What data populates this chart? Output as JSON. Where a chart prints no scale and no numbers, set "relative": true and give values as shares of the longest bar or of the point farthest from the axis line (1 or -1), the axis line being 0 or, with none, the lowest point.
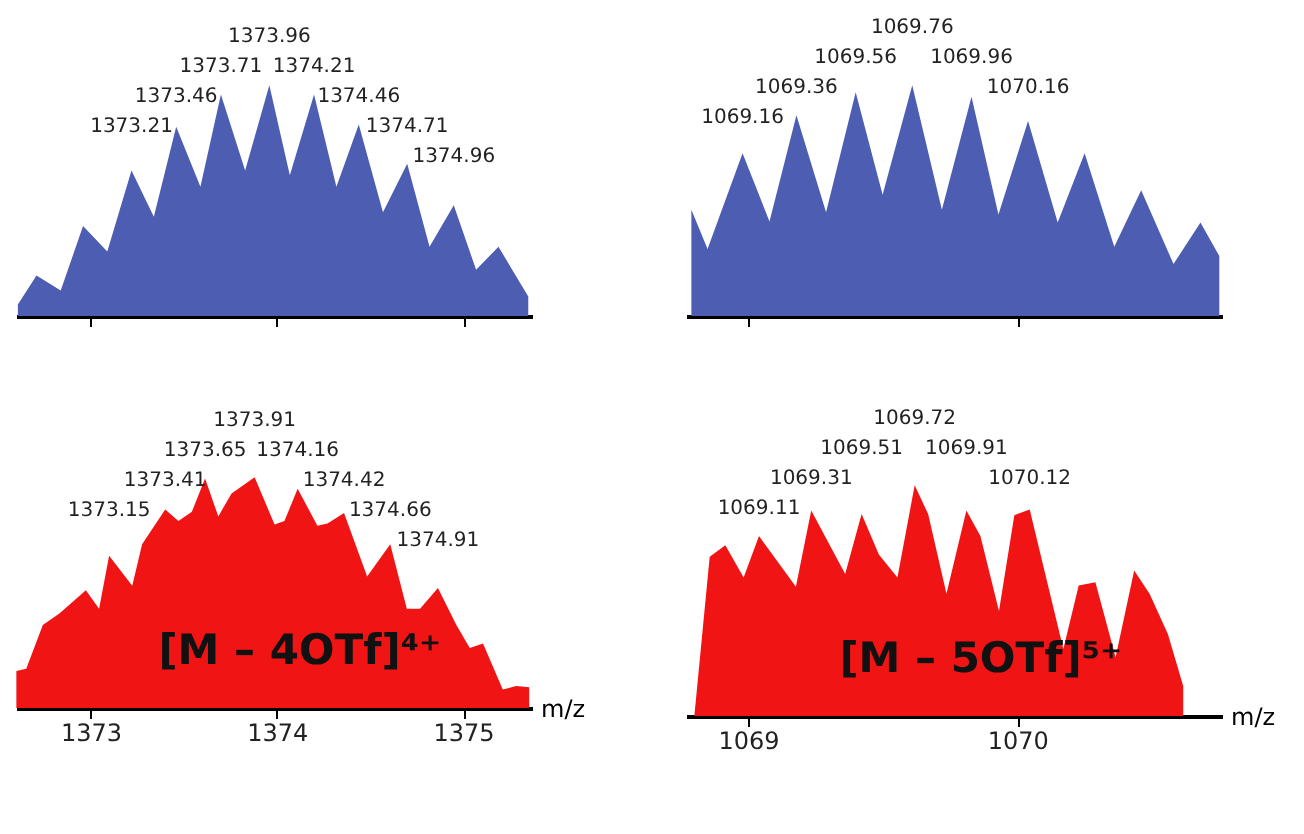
{
  "chart_data": [
    {
      "type": "area",
      "relative": true,
      "color": "#4c5db2",
      "xlim": [
        1372.6,
        1375.37
      ],
      "xticks": [
        1373,
        1374,
        1375
      ],
      "tick_labels": false,
      "x": [
        1372.61,
        1372.71,
        1372.84,
        1372.96,
        1373.09,
        1373.22,
        1373.34,
        1373.46,
        1373.59,
        1373.7,
        1373.83,
        1373.96,
        1374.07,
        1374.2,
        1374.32,
        1374.44,
        1374.57,
        1374.7,
        1374.82,
        1374.95,
        1375.07,
        1375.19,
        1375.35
      ],
      "values": [
        0.05,
        0.175,
        0.11,
        0.39,
        0.28,
        0.63,
        0.43,
        0.82,
        0.56,
        0.96,
        0.63,
        1.0,
        0.61,
        0.96,
        0.56,
        0.83,
        0.45,
        0.66,
        0.3,
        0.48,
        0.2,
        0.3,
        0.085
      ],
      "annotations": [
        {
          "text": "1373.21",
          "x": 1373.22,
          "y": 0.63
        },
        {
          "text": "1373.46",
          "x": 1373.46,
          "y": 0.82
        },
        {
          "text": "1373.71",
          "x": 1373.7,
          "y": 0.96
        },
        {
          "text": "1373.96",
          "x": 1373.96,
          "y": 1.0
        },
        {
          "text": "1374.21",
          "x": 1374.2,
          "y": 0.96
        },
        {
          "text": "1374.46",
          "x": 1374.44,
          "y": 0.83
        },
        {
          "text": "1374.71",
          "x": 1374.7,
          "y": 0.66
        },
        {
          "text": "1374.96",
          "x": 1374.95,
          "y": 0.48
        }
      ]
    },
    {
      "type": "area",
      "relative": true,
      "color": "#4c5db2",
      "xlim": [
        1068.77,
        1070.76
      ],
      "xticks": [
        1069,
        1070
      ],
      "tick_labels": false,
      "x": [
        1068.79,
        1068.85,
        1068.98,
        1069.08,
        1069.18,
        1069.29,
        1069.4,
        1069.5,
        1069.61,
        1069.72,
        1069.83,
        1069.93,
        1070.04,
        1070.15,
        1070.25,
        1070.36,
        1070.46,
        1070.58,
        1070.68,
        1070.75
      ],
      "values": [
        0.46,
        0.29,
        0.705,
        0.41,
        0.87,
        0.45,
        0.97,
        0.525,
        1.0,
        0.46,
        0.95,
        0.44,
        0.845,
        0.405,
        0.705,
        0.3,
        0.545,
        0.225,
        0.405,
        0.26
      ],
      "annotations": [
        {
          "text": "1069.16",
          "x": 1068.98,
          "y": 0.705
        },
        {
          "text": "1069.36",
          "x": 1069.18,
          "y": 0.87
        },
        {
          "text": "1069.56",
          "x": 1069.4,
          "y": 0.97
        },
        {
          "text": "1069.76",
          "x": 1069.61,
          "y": 1.0
        },
        {
          "text": "1069.96",
          "x": 1069.83,
          "y": 0.95
        },
        {
          "text": "1070.16",
          "x": 1070.04,
          "y": 0.845
        }
      ]
    },
    {
      "type": "area",
      "relative": true,
      "color": "#f01414",
      "xlim": [
        1372.6,
        1375.37
      ],
      "xticks": [
        1373,
        1374,
        1375
      ],
      "tick_labels": "x",
      "xlabel": "m/z",
      "x": [
        1372.602,
        1372.655,
        1372.744,
        1372.833,
        1372.975,
        1373.046,
        1373.1,
        1373.224,
        1373.277,
        1373.401,
        1373.472,
        1373.544,
        1373.615,
        1373.686,
        1373.757,
        1373.881,
        1373.988,
        1374.041,
        1374.112,
        1374.218,
        1374.272,
        1374.361,
        1374.485,
        1374.609,
        1374.698,
        1374.769,
        1374.865,
        1374.964,
        1375.036,
        1375.107,
        1375.213,
        1375.284,
        1375.355
      ],
      "values": [
        0.16,
        0.17,
        0.36,
        0.41,
        0.51,
        0.43,
        0.66,
        0.53,
        0.71,
        0.86,
        0.81,
        0.85,
        0.995,
        0.83,
        0.93,
        1.0,
        0.795,
        0.81,
        0.95,
        0.79,
        0.8,
        0.845,
        0.57,
        0.71,
        0.43,
        0.43,
        0.52,
        0.36,
        0.26,
        0.28,
        0.08,
        0.095,
        0.09
      ],
      "annotations": [
        {
          "text": "1373.15",
          "x": 1373.1,
          "y": 0.66
        },
        {
          "text": "1373.41",
          "x": 1373.401,
          "y": 0.86
        },
        {
          "text": "1373.65",
          "x": 1373.615,
          "y": 0.995
        },
        {
          "text": "1373.91",
          "x": 1373.881,
          "y": 1.0
        },
        {
          "text": "1374.16",
          "x": 1374.112,
          "y": 0.95
        },
        {
          "text": "1374.42",
          "x": 1374.361,
          "y": 0.845
        },
        {
          "text": "1374.66",
          "x": 1374.609,
          "y": 0.71
        },
        {
          "text": "1374.91",
          "x": 1374.865,
          "y": 0.52
        },
        "[M – 4OTf]⁴⁺"
      ]
    },
    {
      "type": "area",
      "relative": true,
      "color": "#f01414",
      "xlim": [
        1068.77,
        1070.76
      ],
      "xticks": [
        1069,
        1070
      ],
      "tick_labels": "x",
      "xlabel": "m/z",
      "x": [
        1068.801,
        1068.858,
        1068.916,
        1068.984,
        1069.041,
        1069.178,
        1069.235,
        1069.361,
        1069.422,
        1069.486,
        1069.555,
        1069.619,
        1069.669,
        1069.737,
        1069.811,
        1069.863,
        1069.932,
        1069.989,
        1070.046,
        1070.171,
        1070.228,
        1070.29,
        1070.365,
        1070.434,
        1070.491,
        1070.559,
        1070.616
      ],
      "values": [
        0,
        0.69,
        0.74,
        0.6,
        0.78,
        0.56,
        0.89,
        0.615,
        0.875,
        0.7,
        0.6,
        1.0,
        0.875,
        0.53,
        0.89,
        0.78,
        0.455,
        0.87,
        0.895,
        0.29,
        0.565,
        0.58,
        0.255,
        0.63,
        0.53,
        0.355,
        0.13
      ],
      "annotations": [
        {
          "text": "1069.11",
          "x": 1069.041,
          "y": 0.78
        },
        {
          "text": "1069.31",
          "x": 1069.235,
          "y": 0.89
        },
        {
          "text": "1069.51",
          "x": 1069.422,
          "y": 0.875
        },
        {
          "text": "1069.72",
          "x": 1069.619,
          "y": 1.0
        },
        {
          "text": "1069.91",
          "x": 1069.811,
          "y": 0.89
        },
        {
          "text": "1070.12",
          "x": 1070.046,
          "y": 0.895
        },
        "[M – 5OTf]⁵⁺"
      ]
    }
  ]
}
